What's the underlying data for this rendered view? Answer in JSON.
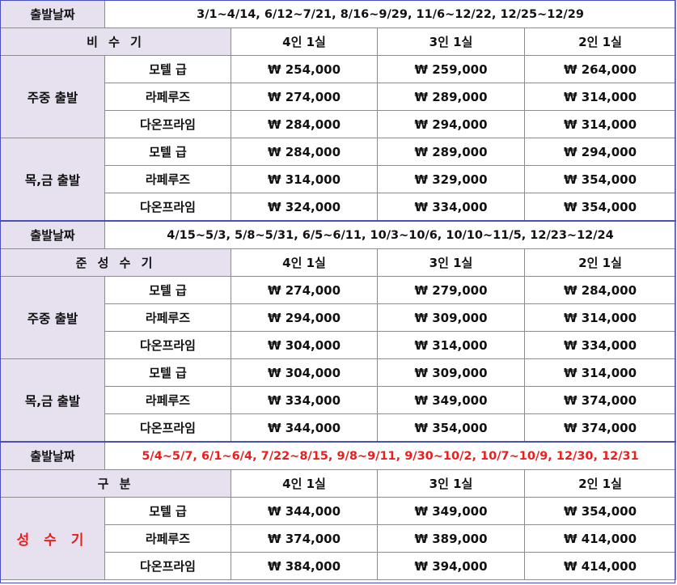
{
  "sections": [
    {
      "date_label": "출발날짜",
      "dates": "3/1~4/14,  6/12~7/21,  8/16~9/29,  11/6~12/22,  12/25~12/29",
      "dates_red": false,
      "season_label": "비 수 기",
      "season_red": false,
      "columns": [
        "4인 1실",
        "3인 1실",
        "2인 1실"
      ],
      "groups": [
        {
          "label": "주중  출발",
          "rows": [
            {
              "hotel": "모텔 급",
              "prices": [
                "₩  254,000",
                "₩  259,000",
                "₩  264,000"
              ]
            },
            {
              "hotel": "라페루즈",
              "prices": [
                "₩  274,000",
                "₩  289,000",
                "₩  314,000"
              ]
            },
            {
              "hotel": "다온프라임",
              "prices": [
                "₩  284,000",
                "₩  294,000",
                "₩  314,000"
              ]
            }
          ]
        },
        {
          "label": "목,금  출발",
          "rows": [
            {
              "hotel": "모텔 급",
              "prices": [
                "₩  284,000",
                "₩  289,000",
                "₩  294,000"
              ]
            },
            {
              "hotel": "라페루즈",
              "prices": [
                "₩  314,000",
                "₩  329,000",
                "₩  354,000"
              ]
            },
            {
              "hotel": "다온프라임",
              "prices": [
                "₩  324,000",
                "₩  334,000",
                "₩  354,000"
              ]
            }
          ]
        }
      ]
    },
    {
      "date_label": "출발날짜",
      "dates": "4/15~5/3,  5/8~5/31,  6/5~6/11,  10/3~10/6,  10/10~11/5,  12/23~12/24",
      "dates_red": false,
      "season_label": "준 성 수 기",
      "season_red": false,
      "columns": [
        "4인 1실",
        "3인 1실",
        "2인 1실"
      ],
      "groups": [
        {
          "label": "주중  출발",
          "rows": [
            {
              "hotel": "모텔 급",
              "prices": [
                "₩  274,000",
                "₩  279,000",
                "₩  284,000"
              ]
            },
            {
              "hotel": "라페루즈",
              "prices": [
                "₩  294,000",
                "₩  309,000",
                "₩  314,000"
              ]
            },
            {
              "hotel": "다온프라임",
              "prices": [
                "₩  304,000",
                "₩  314,000",
                "₩  334,000"
              ]
            }
          ]
        },
        {
          "label": "목,금  출발",
          "rows": [
            {
              "hotel": "모텔 급",
              "prices": [
                "₩  304,000",
                "₩  309,000",
                "₩  314,000"
              ]
            },
            {
              "hotel": "라페루즈",
              "prices": [
                "₩  334,000",
                "₩  349,000",
                "₩  374,000"
              ]
            },
            {
              "hotel": "다온프라임",
              "prices": [
                "₩  344,000",
                "₩  354,000",
                "₩  374,000"
              ]
            }
          ]
        }
      ]
    },
    {
      "date_label": "출발날짜",
      "dates": "5/4~5/7,  6/1~6/4,  7/22~8/15,  9/8~9/11,  9/30~10/2,  10/7~10/9,  12/30,  12/31",
      "dates_red": true,
      "season_label": "구      분",
      "season_red": false,
      "columns": [
        "4인 1실",
        "3인 1실",
        "2인 1실"
      ],
      "groups": [
        {
          "label": "성 수 기",
          "label_red": true,
          "rows": [
            {
              "hotel": "모텔 급",
              "prices": [
                "₩  344,000",
                "₩  349,000",
                "₩  354,000"
              ]
            },
            {
              "hotel": "라페루즈",
              "prices": [
                "₩  374,000",
                "₩  389,000",
                "₩  414,000"
              ]
            },
            {
              "hotel": "다온프라임",
              "prices": [
                "₩  384,000",
                "₩  394,000",
                "₩  414,000"
              ]
            }
          ]
        }
      ]
    }
  ],
  "colors": {
    "header_bg": "#e6e0ef",
    "accent_red": "#e8201d",
    "section_border": "#4a4fb5",
    "grid": "#8c8c8c"
  }
}
